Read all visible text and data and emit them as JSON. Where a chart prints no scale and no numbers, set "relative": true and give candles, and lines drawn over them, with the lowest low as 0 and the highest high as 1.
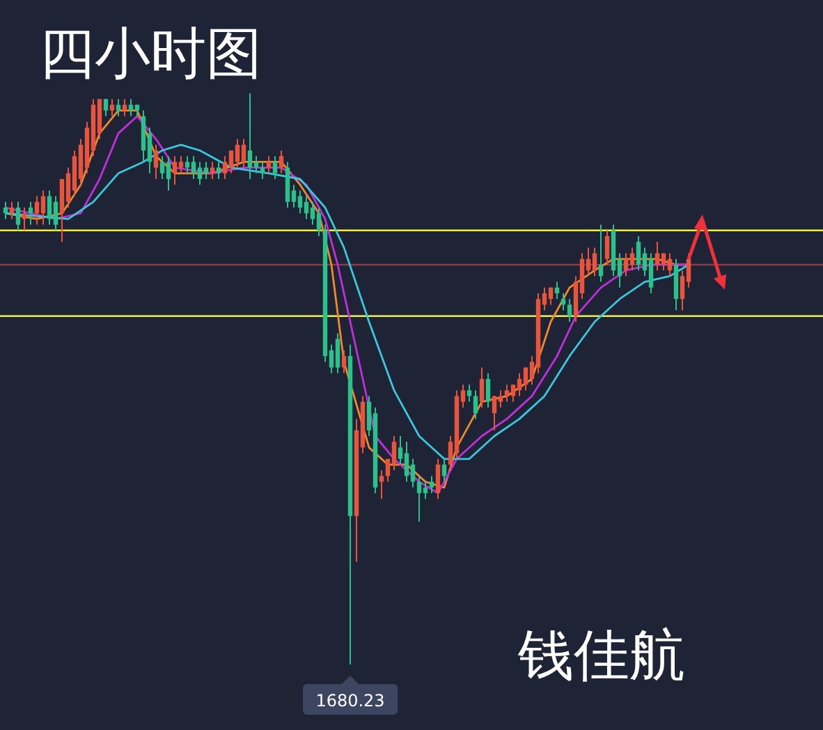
{
  "chart_data": {
    "type": "candlestick",
    "relative": true,
    "title": "四小时图",
    "annotations": [
      "钱佳航",
      {
        "text": "1680.23",
        "y": 0
      }
    ],
    "categories": [
      null,
      null,
      null,
      null,
      null,
      null,
      null,
      null,
      null,
      null,
      null,
      null,
      null,
      null,
      null,
      null,
      null,
      null,
      null,
      null,
      null,
      null,
      null,
      null,
      null,
      null,
      null,
      null,
      null,
      null,
      null,
      null,
      null,
      null,
      null,
      null,
      null,
      null,
      null,
      null,
      null,
      null,
      null,
      null,
      null,
      null,
      null,
      null,
      null,
      null,
      null,
      null,
      null,
      null,
      null,
      null,
      null,
      null,
      null,
      null,
      null,
      null,
      null,
      null,
      null,
      null,
      null,
      null,
      null,
      null,
      null,
      null,
      null,
      null,
      null,
      null,
      null,
      null,
      null,
      null,
      null,
      null,
      null,
      null,
      null,
      null,
      null,
      null,
      null,
      null,
      null,
      null,
      null,
      null,
      null,
      null,
      null,
      null,
      null,
      null,
      null,
      null,
      null,
      null,
      null,
      null,
      null,
      null,
      null,
      null
    ],
    "ohlc": [
      [
        0.8,
        0.81,
        0.78,
        0.79
      ],
      [
        0.79,
        0.81,
        0.78,
        0.8
      ],
      [
        0.8,
        0.81,
        0.76,
        0.77
      ],
      [
        0.78,
        0.8,
        0.76,
        0.79
      ],
      [
        0.8,
        0.81,
        0.77,
        0.79
      ],
      [
        0.79,
        0.82,
        0.77,
        0.81
      ],
      [
        0.79,
        0.83,
        0.77,
        0.82
      ],
      [
        0.82,
        0.83,
        0.77,
        0.78
      ],
      [
        0.81,
        0.82,
        0.76,
        0.77
      ],
      [
        0.79,
        0.85,
        0.74,
        0.85
      ],
      [
        0.81,
        0.87,
        0.8,
        0.86
      ],
      [
        0.83,
        0.9,
        0.82,
        0.89
      ],
      [
        0.85,
        0.92,
        0.84,
        0.91
      ],
      [
        0.87,
        0.95,
        0.86,
        0.94
      ],
      [
        0.9,
        0.99,
        0.89,
        0.98
      ],
      [
        0.93,
        0.99,
        0.92,
        0.99
      ],
      [
        0.99,
        0.99,
        0.96,
        0.97
      ],
      [
        0.97,
        0.99,
        0.96,
        0.98
      ],
      [
        0.98,
        0.99,
        0.96,
        0.97
      ],
      [
        0.97,
        0.99,
        0.96,
        0.98
      ],
      [
        0.98,
        0.99,
        0.96,
        0.97
      ],
      [
        0.98,
        0.98,
        0.96,
        0.97
      ],
      [
        0.96,
        0.97,
        0.88,
        0.9
      ],
      [
        0.93,
        0.94,
        0.86,
        0.88
      ],
      [
        0.87,
        0.91,
        0.85,
        0.9
      ],
      [
        0.88,
        0.89,
        0.85,
        0.86
      ],
      [
        0.88,
        0.89,
        0.83,
        0.85
      ],
      [
        0.86,
        0.89,
        0.84,
        0.88
      ],
      [
        0.87,
        0.89,
        0.86,
        0.88
      ],
      [
        0.88,
        0.89,
        0.86,
        0.87
      ],
      [
        0.88,
        0.89,
        0.85,
        0.86
      ],
      [
        0.87,
        0.88,
        0.84,
        0.85
      ],
      [
        0.87,
        0.88,
        0.85,
        0.86
      ],
      [
        0.86,
        0.88,
        0.85,
        0.87
      ],
      [
        0.87,
        0.88,
        0.85,
        0.86
      ],
      [
        0.86,
        0.89,
        0.85,
        0.88
      ],
      [
        0.87,
        0.9,
        0.86,
        0.9
      ],
      [
        0.88,
        0.92,
        0.87,
        0.91
      ],
      [
        0.88,
        0.92,
        0.87,
        0.91
      ],
      [
        0.9,
        1.0,
        0.85,
        0.87
      ],
      [
        0.88,
        0.89,
        0.86,
        0.87
      ],
      [
        0.87,
        0.88,
        0.85,
        0.86
      ],
      [
        0.87,
        0.89,
        0.86,
        0.88
      ],
      [
        0.88,
        0.89,
        0.85,
        0.86
      ],
      [
        0.87,
        0.9,
        0.86,
        0.89
      ],
      [
        0.87,
        0.88,
        0.8,
        0.81
      ],
      [
        0.83,
        0.84,
        0.8,
        0.81
      ],
      [
        0.82,
        0.83,
        0.79,
        0.8
      ],
      [
        0.81,
        0.82,
        0.78,
        0.79
      ],
      [
        0.8,
        0.81,
        0.77,
        0.78
      ],
      [
        0.79,
        0.8,
        0.75,
        0.76
      ],
      [
        0.76,
        0.77,
        0.53,
        0.54
      ],
      [
        0.55,
        0.56,
        0.51,
        0.52
      ],
      [
        0.57,
        0.58,
        0.51,
        0.52
      ],
      [
        0.52,
        0.55,
        0.51,
        0.54
      ],
      [
        0.54,
        0.56,
        0.0,
        0.26
      ],
      [
        0.26,
        0.43,
        0.18,
        0.41
      ],
      [
        0.38,
        0.47,
        0.37,
        0.46
      ],
      [
        0.46,
        0.47,
        0.4,
        0.41
      ],
      [
        0.44,
        0.45,
        0.3,
        0.31
      ],
      [
        0.32,
        0.34,
        0.29,
        0.33
      ],
      [
        0.33,
        0.36,
        0.32,
        0.36
      ],
      [
        0.35,
        0.4,
        0.34,
        0.39
      ],
      [
        0.38,
        0.4,
        0.35,
        0.36
      ],
      [
        0.37,
        0.39,
        0.32,
        0.33
      ],
      [
        0.35,
        0.36,
        0.31,
        0.32
      ],
      [
        0.32,
        0.33,
        0.25,
        0.3
      ],
      [
        0.31,
        0.32,
        0.29,
        0.3
      ],
      [
        0.32,
        0.33,
        0.3,
        0.31
      ],
      [
        0.3,
        0.36,
        0.29,
        0.35
      ],
      [
        0.35,
        0.36,
        0.32,
        0.33
      ],
      [
        0.35,
        0.4,
        0.34,
        0.39
      ],
      [
        0.37,
        0.48,
        0.36,
        0.47
      ],
      [
        0.46,
        0.49,
        0.45,
        0.48
      ],
      [
        0.48,
        0.49,
        0.46,
        0.47
      ],
      [
        0.47,
        0.48,
        0.43,
        0.44
      ],
      [
        0.46,
        0.52,
        0.45,
        0.5
      ],
      [
        0.5,
        0.51,
        0.45,
        0.46
      ],
      [
        0.44,
        0.47,
        0.41,
        0.47
      ],
      [
        0.46,
        0.48,
        0.45,
        0.47
      ],
      [
        0.47,
        0.49,
        0.46,
        0.48
      ],
      [
        0.47,
        0.49,
        0.46,
        0.49
      ],
      [
        0.48,
        0.51,
        0.47,
        0.5
      ],
      [
        0.49,
        0.52,
        0.48,
        0.52
      ],
      [
        0.5,
        0.54,
        0.49,
        0.53
      ],
      [
        0.52,
        0.65,
        0.51,
        0.64
      ],
      [
        0.63,
        0.66,
        0.62,
        0.65
      ],
      [
        0.64,
        0.66,
        0.63,
        0.66
      ],
      [
        0.66,
        0.67,
        0.64,
        0.65
      ],
      [
        0.64,
        0.65,
        0.62,
        0.63
      ],
      [
        0.63,
        0.64,
        0.6,
        0.61
      ],
      [
        0.61,
        0.68,
        0.6,
        0.67
      ],
      [
        0.65,
        0.72,
        0.64,
        0.71
      ],
      [
        0.69,
        0.73,
        0.68,
        0.71
      ],
      [
        0.69,
        0.73,
        0.68,
        0.72
      ],
      [
        0.7,
        0.77,
        0.67,
        0.68
      ],
      [
        0.71,
        0.76,
        0.7,
        0.75
      ],
      [
        0.76,
        0.77,
        0.68,
        0.69
      ],
      [
        0.71,
        0.72,
        0.66,
        0.68
      ],
      [
        0.69,
        0.72,
        0.68,
        0.71
      ],
      [
        0.7,
        0.73,
        0.69,
        0.72
      ],
      [
        0.74,
        0.75,
        0.69,
        0.7
      ],
      [
        0.72,
        0.73,
        0.68,
        0.69
      ],
      [
        0.71,
        0.72,
        0.65,
        0.66
      ],
      [
        0.7,
        0.74,
        0.69,
        0.72
      ],
      [
        0.7,
        0.72,
        0.69,
        0.72
      ],
      [
        0.69,
        0.72,
        0.68,
        0.71
      ],
      [
        0.7,
        0.71,
        0.62,
        0.64
      ],
      [
        0.64,
        0.69,
        0.62,
        0.68
      ],
      [
        0.67,
        0.72,
        0.66,
        0.71
      ]
    ],
    "series": [
      {
        "type": "line",
        "color": "#f08a2c",
        "values": [
          0.79,
          null,
          null,
          null,
          null,
          0.78,
          null,
          null,
          null,
          0.79,
          null,
          null,
          0.84,
          null,
          null,
          0.93,
          null,
          null,
          0.97,
          null,
          null,
          0.97,
          null,
          null,
          0.89,
          null,
          null,
          0.86,
          null,
          null,
          null,
          null,
          null,
          0.86,
          null,
          null,
          null,
          null,
          0.88,
          null,
          null,
          0.88,
          null,
          null,
          0.88,
          null,
          null,
          0.84,
          null,
          null,
          0.79,
          null,
          0.7,
          null,
          0.53,
          null,
          null,
          null,
          0.38,
          null,
          null,
          0.35,
          null,
          null,
          0.35,
          null,
          null,
          0.32,
          null,
          null,
          0.31,
          null,
          0.38,
          null,
          null,
          null,
          0.46,
          null,
          null,
          null,
          0.47,
          null,
          null,
          null,
          0.5,
          null,
          null,
          0.6,
          null,
          null,
          0.66,
          null,
          null,
          null,
          0.69,
          null,
          null,
          0.71,
          null,
          null,
          0.71,
          null,
          null,
          null,
          0.71,
          null,
          null,
          0.7,
          null,
          0.7
        ]
      },
      {
        "type": "line",
        "color": "#c030d8",
        "values": [
          0.8,
          null,
          null,
          null,
          null,
          null,
          null,
          null,
          0.78,
          null,
          null,
          null,
          0.79,
          null,
          null,
          0.85,
          null,
          null,
          0.93,
          null,
          null,
          0.96,
          null,
          null,
          0.92,
          null,
          null,
          0.87,
          null,
          null,
          null,
          null,
          null,
          0.86,
          null,
          null,
          null,
          null,
          0.87,
          null,
          null,
          null,
          null,
          null,
          0.87,
          null,
          null,
          null,
          0.84,
          null,
          null,
          0.78,
          null,
          0.7,
          null,
          null,
          0.55,
          null,
          null,
          0.4,
          null,
          null,
          0.36,
          null,
          null,
          null,
          0.32,
          null,
          null,
          0.3,
          null,
          null,
          0.36,
          null,
          null,
          null,
          0.4,
          null,
          null,
          null,
          0.43,
          null,
          null,
          null,
          0.47,
          null,
          null,
          null,
          0.54,
          null,
          null,
          0.61,
          null,
          null,
          null,
          0.66,
          null,
          null,
          null,
          0.69,
          null,
          null,
          null,
          0.7,
          null,
          null,
          null,
          0.7,
          null,
          0.7
        ]
      },
      {
        "type": "line",
        "color": "#3cc8dc",
        "values": [
          0.79,
          null,
          null,
          null,
          null,
          null,
          null,
          null,
          null,
          null,
          0.78,
          null,
          null,
          null,
          0.81,
          null,
          null,
          null,
          0.86,
          null,
          null,
          null,
          0.88,
          null,
          null,
          0.9,
          null,
          null,
          0.91,
          null,
          null,
          0.9,
          null,
          null,
          null,
          null,
          0.87,
          null,
          null,
          null,
          null,
          null,
          0.86,
          null,
          null,
          null,
          null,
          0.85,
          null,
          null,
          null,
          0.8,
          null,
          null,
          0.73,
          null,
          null,
          null,
          0.6,
          null,
          null,
          null,
          0.48,
          null,
          null,
          null,
          0.4,
          null,
          null,
          null,
          0.36,
          null,
          null,
          null,
          0.36,
          null,
          null,
          null,
          0.4,
          null,
          null,
          null,
          0.43,
          null,
          null,
          null,
          0.47,
          null,
          null,
          null,
          0.54,
          null,
          null,
          null,
          0.6,
          null,
          null,
          null,
          0.64,
          null,
          null,
          null,
          0.67,
          null,
          null,
          null,
          0.68,
          null,
          null,
          0.7
        ]
      }
    ],
    "ref_lines": [
      {
        "axis": "y",
        "value": 0.76,
        "color": "#f2f23a"
      },
      {
        "axis": "y",
        "value": 0.61,
        "color": "#f2f23a"
      },
      {
        "axis": "y",
        "value": 0.7,
        "color": "#8c3c44"
      }
    ]
  }
}
